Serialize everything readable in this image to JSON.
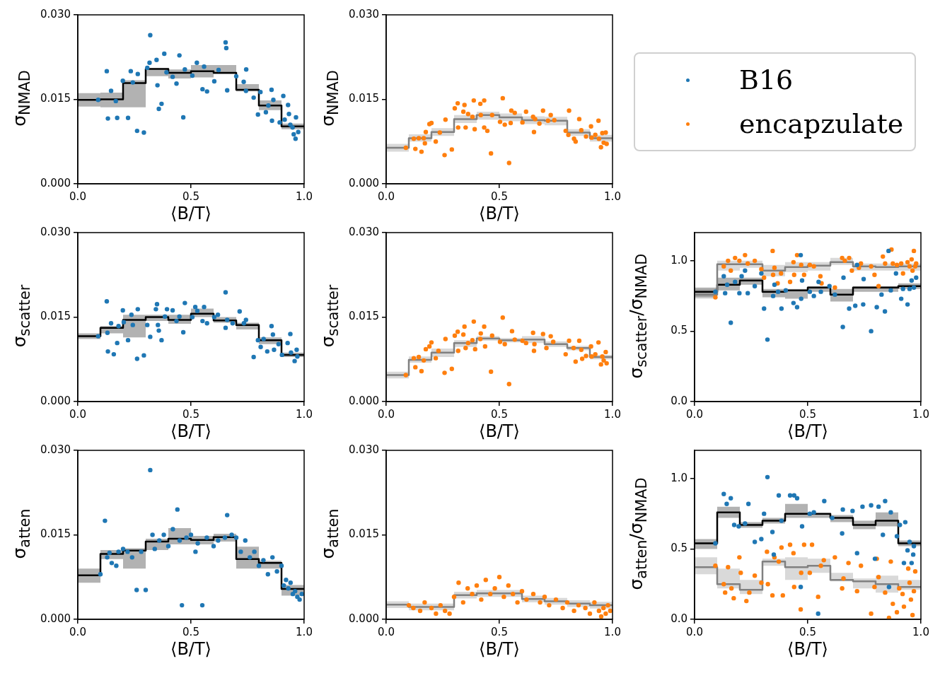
{
  "chart_data": [
    {
      "type": "scatter",
      "xlabel": "⟨B/T⟩",
      "ylabel": "σ$_{NMAD}$",
      "xlim": [
        0,
        1
      ],
      "ylim": [
        0,
        0.03
      ],
      "xticks": [
        {
          "value": 0,
          "label": "0.0"
        },
        {
          "value": 0.5,
          "label": "0.5"
        },
        {
          "value": 1,
          "label": "1.0"
        }
      ],
      "yticks": [
        {
          "value": 0,
          "label": "0.000"
        },
        {
          "value": 0.015,
          "label": "0.015"
        },
        {
          "value": 0.03,
          "label": "0.030"
        }
      ],
      "marker": "circle",
      "series": [
        {
          "type": "step",
          "marker": "none",
          "color": "#000000",
          "x": [
            0,
            0.1,
            0.2,
            0.3,
            0.4,
            0.5,
            0.6,
            0.7,
            0.8,
            0.9,
            1.0
          ],
          "values": [
            0.0149,
            0.015,
            0.0179,
            0.0204,
            0.0197,
            0.02,
            0.0197,
            0.0167,
            0.0139,
            0.0102,
            0.0102
          ],
          "lower": [
            0.0137,
            0.0136,
            0.0136,
            0.0191,
            0.0187,
            0.0189,
            0.0195,
            0.0164,
            0.0131,
            0.0097,
            0.0097
          ],
          "upper": [
            0.0161,
            0.0162,
            0.0184,
            0.0205,
            0.0203,
            0.0211,
            0.0211,
            0.0177,
            0.0148,
            0.0107,
            0.0107
          ]
        },
        {
          "type": "scatter",
          "color": "#1f77b4",
          "x": [
            0.09,
            0.128,
            0.133,
            0.147,
            0.174,
            0.168,
            0.199,
            0.222,
            0.234,
            0.243,
            0.262,
            0.265,
            0.292,
            0.307,
            0.32,
            0.317,
            0.348,
            0.352,
            0.358,
            0.37,
            0.382,
            0.392,
            0.419,
            0.436,
            0.449,
            0.466,
            0.473,
            0.506,
            0.526,
            0.551,
            0.558,
            0.571,
            0.603,
            0.622,
            0.653,
            0.656,
            0.66,
            0.7,
            0.733,
            0.744,
            0.743,
            0.777,
            0.796,
            0.807,
            0.831,
            0.842,
            0.856,
            0.864,
            0.858,
            0.892,
            0.908,
            0.914,
            0.929,
            0.933,
            0.949,
            0.964,
            0.954,
            0.962,
            0.974,
            0.939
          ],
          "values": [
            0.0149,
            0.02,
            0.0116,
            0.0165,
            0.0117,
            0.0147,
            0.0183,
            0.0117,
            0.02,
            0.018,
            0.0094,
            0.0195,
            0.0091,
            0.0206,
            0.0264,
            0.0215,
            0.022,
            0.0175,
            0.0133,
            0.0142,
            0.0231,
            0.0198,
            0.019,
            0.0178,
            0.0228,
            0.0118,
            0.0203,
            0.0192,
            0.0215,
            0.0168,
            0.0208,
            0.0164,
            0.0182,
            0.0202,
            0.0251,
            0.0241,
            0.0166,
            0.0191,
            0.0181,
            0.0203,
            0.0165,
            0.0153,
            0.0123,
            0.0163,
            0.0127,
            0.0139,
            0.0167,
            0.0149,
            0.0112,
            0.0109,
            0.0156,
            0.0114,
            0.014,
            0.0124,
            0.01,
            0.0118,
            0.0088,
            0.008,
            0.0092,
            0.0105
          ]
        }
      ]
    },
    {
      "type": "scatter",
      "xlabel": "⟨B/T⟩",
      "ylabel": "σ$_{NMAD}$",
      "xlim": [
        0,
        1
      ],
      "ylim": [
        0,
        0.03
      ],
      "xticks": [
        {
          "value": 0,
          "label": "0.0"
        },
        {
          "value": 0.5,
          "label": "0.5"
        },
        {
          "value": 1,
          "label": "1.0"
        }
      ],
      "yticks": [
        {
          "value": 0,
          "label": "0.000"
        },
        {
          "value": 0.015,
          "label": "0.015"
        },
        {
          "value": 0.03,
          "label": "0.030"
        }
      ],
      "marker": "circle",
      "series": [
        {
          "type": "step",
          "marker": "none",
          "color": "#808080",
          "x": [
            0,
            0.1,
            0.2,
            0.3,
            0.4,
            0.5,
            0.6,
            0.7,
            0.8,
            0.9,
            1.0
          ],
          "values": [
            0.0064,
            0.0081,
            0.0092,
            0.0115,
            0.0122,
            0.0118,
            0.0113,
            0.0112,
            0.0091,
            0.0081,
            0.0081
          ],
          "lower": [
            0.0057,
            0.0075,
            0.0085,
            0.0108,
            0.0114,
            0.0111,
            0.0106,
            0.0104,
            0.0085,
            0.0075,
            0.0075
          ],
          "upper": [
            0.0071,
            0.0088,
            0.0099,
            0.0122,
            0.0128,
            0.0125,
            0.012,
            0.0119,
            0.0097,
            0.0087,
            0.0087
          ]
        },
        {
          "type": "scatter",
          "color": "#ff7f0e",
          "x": [
            0.087,
            0.122,
            0.129,
            0.144,
            0.156,
            0.166,
            0.171,
            0.175,
            0.191,
            0.2,
            0.219,
            0.237,
            0.258,
            0.262,
            0.29,
            0.303,
            0.316,
            0.318,
            0.341,
            0.346,
            0.351,
            0.362,
            0.381,
            0.387,
            0.391,
            0.416,
            0.418,
            0.433,
            0.433,
            0.447,
            0.463,
            0.468,
            0.503,
            0.515,
            0.524,
            0.543,
            0.55,
            0.553,
            0.568,
            0.602,
            0.618,
            0.649,
            0.653,
            0.658,
            0.677,
            0.693,
            0.715,
            0.727,
            0.743,
            0.793,
            0.808,
            0.805,
            0.83,
            0.837,
            0.853,
            0.862,
            0.883,
            0.905,
            0.908,
            0.924,
            0.938,
            0.94,
            0.949,
            0.955,
            0.961,
            0.97,
            0.974
          ],
          "values": [
            0.0064,
            0.008,
            0.0062,
            0.0081,
            0.0057,
            0.0081,
            0.0072,
            0.0092,
            0.0106,
            0.0108,
            0.0075,
            0.0091,
            0.0051,
            0.0114,
            0.0061,
            0.0134,
            0.0143,
            0.01,
            0.0128,
            0.014,
            0.01,
            0.0124,
            0.0119,
            0.0148,
            0.0097,
            0.0142,
            0.0122,
            0.0148,
            0.01,
            0.0094,
            0.0054,
            0.0122,
            0.011,
            0.0152,
            0.0105,
            0.0037,
            0.0108,
            0.013,
            0.0126,
            0.0109,
            0.0128,
            0.0119,
            0.0092,
            0.0115,
            0.0107,
            0.013,
            0.0112,
            0.0122,
            0.0113,
            0.0094,
            0.013,
            0.0087,
            0.008,
            0.0075,
            0.0115,
            0.0095,
            0.0084,
            0.0102,
            0.0082,
            0.0087,
            0.0112,
            0.008,
            0.0065,
            0.009,
            0.0073,
            0.0091,
            0.0071
          ]
        }
      ]
    },
    {
      "type": "scatter",
      "xlabel": "⟨B/T⟩",
      "ylabel": "σ$_{scatter}$",
      "xlim": [
        0,
        1
      ],
      "ylim": [
        0,
        0.03
      ],
      "xticks": [
        {
          "value": 0,
          "label": "0.0"
        },
        {
          "value": 0.5,
          "label": "0.5"
        },
        {
          "value": 1,
          "label": "1.0"
        }
      ],
      "yticks": [
        {
          "value": 0,
          "label": "0.000"
        },
        {
          "value": 0.015,
          "label": "0.015"
        },
        {
          "value": 0.03,
          "label": "0.030"
        }
      ],
      "marker": "circle",
      "series": [
        {
          "type": "step",
          "marker": "none",
          "color": "#000000",
          "x": [
            0,
            0.1,
            0.2,
            0.3,
            0.4,
            0.5,
            0.6,
            0.7,
            0.8,
            0.9,
            1.0
          ],
          "values": [
            0.0116,
            0.0131,
            0.0145,
            0.015,
            0.0145,
            0.0156,
            0.0144,
            0.0136,
            0.0109,
            0.0083,
            0.0083
          ],
          "lower": [
            0.0111,
            0.0121,
            0.0114,
            0.0143,
            0.0138,
            0.015,
            0.014,
            0.0128,
            0.0102,
            0.0079,
            0.0079
          ],
          "upper": [
            0.0121,
            0.0134,
            0.0154,
            0.0154,
            0.0154,
            0.0165,
            0.015,
            0.014,
            0.0114,
            0.0087,
            0.0087
          ]
        },
        {
          "type": "scatter",
          "color": "#1f77b4",
          "x": [
            0.09,
            0.128,
            0.131,
            0.133,
            0.147,
            0.159,
            0.174,
            0.18,
            0.199,
            0.203,
            0.222,
            0.237,
            0.243,
            0.262,
            0.265,
            0.292,
            0.307,
            0.32,
            0.345,
            0.35,
            0.354,
            0.358,
            0.37,
            0.385,
            0.394,
            0.419,
            0.436,
            0.449,
            0.466,
            0.473,
            0.506,
            0.519,
            0.528,
            0.551,
            0.558,
            0.571,
            0.603,
            0.619,
            0.653,
            0.653,
            0.66,
            0.684,
            0.715,
            0.734,
            0.743,
            0.777,
            0.796,
            0.808,
            0.821,
            0.837,
            0.856,
            0.862,
            0.867,
            0.887,
            0.902,
            0.927,
            0.939,
            0.942,
            0.958,
            0.967,
            0.97
          ],
          "values": [
            0.0116,
            0.0178,
            0.0122,
            0.0089,
            0.0139,
            0.0084,
            0.0104,
            0.0134,
            0.0162,
            0.0141,
            0.0109,
            0.0154,
            0.0136,
            0.0076,
            0.0164,
            0.0082,
            0.0136,
            0.0115,
            0.0164,
            0.0173,
            0.0136,
            0.0126,
            0.0109,
            0.0151,
            0.0164,
            0.0162,
            0.0143,
            0.0151,
            0.0123,
            0.0175,
            0.015,
            0.0168,
            0.0161,
            0.0143,
            0.0168,
            0.0139,
            0.015,
            0.0154,
            0.0194,
            0.0131,
            0.0145,
            0.0139,
            0.016,
            0.0139,
            0.0145,
            0.0079,
            0.0109,
            0.0097,
            0.0111,
            0.0089,
            0.0134,
            0.0119,
            0.0092,
            0.0102,
            0.0083,
            0.0104,
            0.012,
            0.0087,
            0.0072,
            0.0092,
            0.008
          ]
        }
      ]
    },
    {
      "type": "scatter",
      "xlabel": "⟨B/T⟩",
      "ylabel": "σ$_{scatter}$",
      "xlim": [
        0,
        1
      ],
      "ylim": [
        0,
        0.03
      ],
      "xticks": [
        {
          "value": 0,
          "label": "0.0"
        },
        {
          "value": 0.5,
          "label": "0.5"
        },
        {
          "value": 1,
          "label": "1.0"
        }
      ],
      "yticks": [
        {
          "value": 0,
          "label": "0.000"
        },
        {
          "value": 0.015,
          "label": "0.015"
        },
        {
          "value": 0.03,
          "label": "0.030"
        }
      ],
      "marker": "circle",
      "series": [
        {
          "type": "step",
          "marker": "none",
          "color": "#808080",
          "x": [
            0,
            0.1,
            0.2,
            0.3,
            0.4,
            0.5,
            0.6,
            0.7,
            0.8,
            0.9,
            1.0
          ],
          "values": [
            0.0047,
            0.0074,
            0.0087,
            0.0104,
            0.0112,
            0.0109,
            0.011,
            0.0102,
            0.0095,
            0.0079,
            0.0079
          ],
          "lower": [
            0.0041,
            0.0069,
            0.0079,
            0.0097,
            0.0108,
            0.0105,
            0.0104,
            0.0097,
            0.0091,
            0.0075,
            0.0075
          ],
          "upper": [
            0.0053,
            0.008,
            0.0094,
            0.0109,
            0.0116,
            0.0113,
            0.0116,
            0.0107,
            0.0099,
            0.0083,
            0.0083
          ]
        },
        {
          "type": "scatter",
          "color": "#ff7f0e",
          "x": [
            0.087,
            0.122,
            0.129,
            0.144,
            0.156,
            0.166,
            0.175,
            0.191,
            0.2,
            0.219,
            0.231,
            0.258,
            0.262,
            0.29,
            0.303,
            0.316,
            0.318,
            0.341,
            0.346,
            0.351,
            0.362,
            0.381,
            0.387,
            0.393,
            0.416,
            0.418,
            0.433,
            0.437,
            0.468,
            0.463,
            0.503,
            0.515,
            0.524,
            0.543,
            0.556,
            0.568,
            0.602,
            0.618,
            0.649,
            0.653,
            0.655,
            0.693,
            0.708,
            0.727,
            0.738,
            0.793,
            0.808,
            0.828,
            0.837,
            0.853,
            0.862,
            0.866,
            0.883,
            0.905,
            0.908,
            0.924,
            0.938,
            0.949,
            0.955,
            0.961,
            0.97,
            0.974
          ],
          "values": [
            0.0047,
            0.0077,
            0.0061,
            0.0079,
            0.0054,
            0.0073,
            0.0093,
            0.0098,
            0.0105,
            0.0077,
            0.009,
            0.0051,
            0.0111,
            0.0058,
            0.0117,
            0.0124,
            0.009,
            0.0119,
            0.0133,
            0.0095,
            0.0104,
            0.0109,
            0.0142,
            0.0093,
            0.0111,
            0.0121,
            0.0133,
            0.0098,
            0.0117,
            0.0053,
            0.0106,
            0.0149,
            0.0102,
            0.0031,
            0.0125,
            0.011,
            0.0108,
            0.0104,
            0.0122,
            0.009,
            0.0102,
            0.012,
            0.0095,
            0.0116,
            0.0106,
            0.0084,
            0.0108,
            0.0095,
            0.0071,
            0.0108,
            0.0092,
            0.0076,
            0.0081,
            0.0098,
            0.008,
            0.0084,
            0.0105,
            0.0066,
            0.008,
            0.0073,
            0.0088,
            0.0068
          ]
        }
      ]
    },
    {
      "type": "scatter",
      "xlabel": "⟨B/T⟩",
      "ylabel": "σ$_{scatter}$/σ$_{NMAD}$",
      "xlim": [
        0,
        1
      ],
      "ylim": [
        0,
        1.2
      ],
      "xticks": [
        {
          "value": 0,
          "label": "0.0"
        },
        {
          "value": 0.5,
          "label": "0.5"
        },
        {
          "value": 1,
          "label": "1.0"
        }
      ],
      "yticks": [
        {
          "value": 0,
          "label": "0.0"
        },
        {
          "value": 0.5,
          "label": "0.5"
        },
        {
          "value": 1,
          "label": "1.0"
        }
      ],
      "marker": "circle",
      "legend": "top",
      "series": [
        {
          "type": "step",
          "marker": "none",
          "color": "#808080",
          "x": [
            0,
            0.1,
            0.2,
            0.3,
            0.4,
            0.5,
            0.6,
            0.7,
            0.8,
            0.9,
            1.0
          ],
          "values": [
            0.76,
            0.975,
            0.975,
            0.93,
            0.955,
            0.965,
            0.99,
            0.96,
            0.955,
            0.96,
            0.96
          ],
          "lower": [
            0.73,
            0.93,
            0.95,
            0.89,
            0.92,
            0.93,
            0.97,
            0.93,
            0.93,
            0.93,
            0.93
          ],
          "upper": [
            0.8,
            1.0,
            1.0,
            0.97,
            0.99,
            0.99,
            1.02,
            0.98,
            0.98,
            0.98,
            0.98
          ]
        },
        {
          "type": "step",
          "marker": "none",
          "color": "#000000",
          "x": [
            0,
            0.1,
            0.2,
            0.3,
            0.4,
            0.5,
            0.6,
            0.7,
            0.8,
            0.9,
            1.0
          ],
          "values": [
            0.78,
            0.83,
            0.86,
            0.78,
            0.79,
            0.81,
            0.76,
            0.81,
            0.81,
            0.82,
            0.82
          ],
          "lower": [
            0.74,
            0.79,
            0.83,
            0.74,
            0.73,
            0.78,
            0.71,
            0.78,
            0.78,
            0.8,
            0.8
          ],
          "upper": [
            0.81,
            0.88,
            0.88,
            0.8,
            0.8,
            0.82,
            0.8,
            0.82,
            0.82,
            0.84,
            0.84
          ]
        },
        {
          "type": "scatter",
          "name": "B16",
          "color": "#1f77b4",
          "x": [
            0.092,
            0.129,
            0.135,
            0.144,
            0.16,
            0.179,
            0.198,
            0.208,
            0.223,
            0.235,
            0.266,
            0.295,
            0.307,
            0.322,
            0.347,
            0.353,
            0.369,
            0.384,
            0.403,
            0.437,
            0.453,
            0.469,
            0.471,
            0.475,
            0.509,
            0.527,
            0.548,
            0.558,
            0.596,
            0.62,
            0.655,
            0.658,
            0.683,
            0.71,
            0.718,
            0.745,
            0.747,
            0.78,
            0.805,
            0.826,
            0.841,
            0.857,
            0.867,
            0.89,
            0.913,
            0.921,
            0.941,
            0.95,
            0.959,
            0.969,
            0.979
          ],
          "values": [
            0.78,
            0.89,
            0.77,
            0.83,
            0.56,
            0.85,
            0.77,
            0.89,
            0.93,
            0.77,
            0.82,
            0.91,
            0.66,
            0.44,
            0.75,
            0.83,
            0.78,
            0.66,
            0.79,
            0.7,
            0.67,
            1.04,
            0.73,
            0.86,
            0.78,
            0.75,
            0.85,
            0.78,
            0.82,
            0.76,
            0.53,
            0.88,
            0.66,
            0.68,
            0.97,
            0.69,
            0.87,
            0.5,
            0.67,
            0.76,
            0.64,
            1.07,
            0.79,
            0.91,
            0.73,
            0.8,
            0.69,
            0.8,
            0.86,
            0.81,
            0.88
          ]
        },
        {
          "type": "scatter",
          "name": "encapzulate",
          "color": "#ff7f0e",
          "x": [
            0.092,
            0.129,
            0.148,
            0.16,
            0.179,
            0.198,
            0.223,
            0.235,
            0.266,
            0.295,
            0.307,
            0.345,
            0.347,
            0.353,
            0.367,
            0.382,
            0.422,
            0.437,
            0.44,
            0.453,
            0.471,
            0.484,
            0.509,
            0.527,
            0.556,
            0.561,
            0.62,
            0.652,
            0.664,
            0.683,
            0.695,
            0.726,
            0.735,
            0.78,
            0.795,
            0.813,
            0.832,
            0.842,
            0.87,
            0.876,
            0.894,
            0.913,
            0.921,
            0.941,
            0.95,
            0.959,
            0.963,
            0.969,
            0.975,
            0.979
          ],
          "values": [
            0.74,
            0.96,
            1.0,
            0.93,
            1.02,
            1.0,
            1.04,
            0.98,
            1.0,
            0.94,
            0.88,
            1.07,
            0.9,
            0.95,
            0.84,
            0.91,
            0.85,
            0.99,
            0.9,
            1.04,
            0.97,
            0.9,
            0.97,
            0.96,
            0.89,
            0.84,
            0.81,
            1.02,
            1.0,
            1.02,
            0.93,
            0.95,
            0.98,
            0.96,
            0.9,
            0.82,
            1.03,
            0.98,
            1.08,
            0.98,
            0.97,
            0.98,
            0.91,
            0.99,
            0.96,
            1.01,
            0.93,
            1.07,
            0.96,
            0.98
          ]
        }
      ]
    },
    {
      "type": "scatter",
      "xlabel": "⟨B/T⟩",
      "ylabel": "σ$_{atten}$",
      "xlim": [
        0,
        1
      ],
      "ylim": [
        0,
        0.03
      ],
      "xticks": [
        {
          "value": 0,
          "label": "0.0"
        },
        {
          "value": 0.5,
          "label": "0.5"
        },
        {
          "value": 1,
          "label": "1.0"
        }
      ],
      "yticks": [
        {
          "value": 0,
          "label": "0.000"
        },
        {
          "value": 0.015,
          "label": "0.015"
        },
        {
          "value": 0.03,
          "label": "0.030"
        }
      ],
      "marker": "circle",
      "series": [
        {
          "type": "step",
          "marker": "none",
          "color": "#000000",
          "x": [
            0,
            0.1,
            0.2,
            0.3,
            0.4,
            0.5,
            0.6,
            0.7,
            0.8,
            0.9,
            1.0
          ],
          "values": [
            0.0078,
            0.0116,
            0.0122,
            0.0138,
            0.0143,
            0.0141,
            0.0146,
            0.0107,
            0.01,
            0.0054,
            0.0054
          ],
          "lower": [
            0.0065,
            0.0107,
            0.009,
            0.0123,
            0.0133,
            0.0133,
            0.0138,
            0.009,
            0.009,
            0.0042,
            0.0042
          ],
          "upper": [
            0.009,
            0.0123,
            0.0126,
            0.0143,
            0.0162,
            0.0148,
            0.0152,
            0.0129,
            0.0104,
            0.0061,
            0.0061
          ]
        },
        {
          "type": "scatter",
          "color": "#1f77b4",
          "x": [
            0.1,
            0.12,
            0.13,
            0.14,
            0.15,
            0.17,
            0.18,
            0.2,
            0.22,
            0.24,
            0.26,
            0.28,
            0.3,
            0.32,
            0.33,
            0.34,
            0.36,
            0.38,
            0.4,
            0.42,
            0.44,
            0.45,
            0.46,
            0.48,
            0.5,
            0.52,
            0.53,
            0.55,
            0.57,
            0.6,
            0.62,
            0.65,
            0.66,
            0.68,
            0.7,
            0.72,
            0.74,
            0.76,
            0.78,
            0.8,
            0.82,
            0.84,
            0.86,
            0.88,
            0.9,
            0.91,
            0.92,
            0.93,
            0.94,
            0.95,
            0.96,
            0.97,
            0.98,
            0.99
          ],
          "values": [
            0.008,
            0.0175,
            0.011,
            0.0118,
            0.01,
            0.0095,
            0.012,
            0.0125,
            0.012,
            0.011,
            0.0052,
            0.012,
            0.0052,
            0.0265,
            0.015,
            0.0125,
            0.014,
            0.015,
            0.013,
            0.016,
            0.0195,
            0.014,
            0.0025,
            0.0145,
            0.015,
            0.012,
            0.0135,
            0.0025,
            0.0145,
            0.013,
            0.014,
            0.0145,
            0.0185,
            0.015,
            0.0145,
            0.012,
            0.014,
            0.011,
            0.012,
            0.0095,
            0.0105,
            0.008,
            0.011,
            0.0085,
            0.0095,
            0.006,
            0.007,
            0.0055,
            0.0065,
            0.0045,
            0.005,
            0.004,
            0.0035,
            0.0045
          ]
        }
      ]
    },
    {
      "type": "scatter",
      "xlabel": "⟨B/T⟩",
      "ylabel": "σ$_{atten}$",
      "xlim": [
        0,
        1
      ],
      "ylim": [
        0,
        0.03
      ],
      "xticks": [
        {
          "value": 0,
          "label": "0.0"
        },
        {
          "value": 0.5,
          "label": "0.5"
        },
        {
          "value": 1,
          "label": "1.0"
        }
      ],
      "yticks": [
        {
          "value": 0,
          "label": "0.000"
        },
        {
          "value": 0.015,
          "label": "0.015"
        },
        {
          "value": 0.03,
          "label": "0.030"
        }
      ],
      "marker": "circle",
      "series": [
        {
          "type": "step",
          "marker": "none",
          "color": "#808080",
          "x": [
            0,
            0.1,
            0.2,
            0.3,
            0.4,
            0.5,
            0.6,
            0.7,
            0.8,
            0.9,
            1.0
          ],
          "values": [
            0.0026,
            0.0022,
            0.0022,
            0.0043,
            0.0046,
            0.0046,
            0.0036,
            0.0032,
            0.0028,
            0.0025,
            0.0025
          ],
          "lower": [
            0.002,
            0.0016,
            0.0016,
            0.0037,
            0.004,
            0.004,
            0.003,
            0.0026,
            0.0022,
            0.0019,
            0.0019
          ],
          "upper": [
            0.0032,
            0.0028,
            0.0028,
            0.0049,
            0.0052,
            0.0052,
            0.0042,
            0.0038,
            0.0034,
            0.0031,
            0.0031
          ]
        },
        {
          "type": "scatter",
          "color": "#ff7f0e",
          "x": [
            0.1,
            0.12,
            0.15,
            0.17,
            0.2,
            0.22,
            0.24,
            0.26,
            0.28,
            0.3,
            0.32,
            0.34,
            0.36,
            0.38,
            0.4,
            0.42,
            0.44,
            0.46,
            0.48,
            0.5,
            0.52,
            0.54,
            0.56,
            0.58,
            0.6,
            0.62,
            0.65,
            0.68,
            0.7,
            0.72,
            0.75,
            0.78,
            0.8,
            0.83,
            0.85,
            0.88,
            0.9,
            0.92,
            0.94,
            0.95,
            0.96,
            0.97,
            0.98,
            0.99
          ],
          "values": [
            0.0025,
            0.002,
            0.0015,
            0.003,
            0.002,
            0.001,
            0.0025,
            0.0015,
            0.001,
            0.004,
            0.0065,
            0.003,
            0.0055,
            0.0045,
            0.006,
            0.0035,
            0.007,
            0.0045,
            0.0055,
            0.0075,
            0.004,
            0.006,
            0.0045,
            0.003,
            0.005,
            0.0035,
            0.0045,
            0.003,
            0.004,
            0.0025,
            0.0035,
            0.002,
            0.003,
            0.0015,
            0.0025,
            0.002,
            0.001,
            0.003,
            0.0015,
            0.0005,
            0.002,
            0.001,
            0.0025,
            0.0015
          ]
        }
      ]
    },
    {
      "type": "scatter",
      "xlabel": "⟨B/T⟩",
      "ylabel": "σ$_{atten}$/σ$_{NMAD}$",
      "xlim": [
        0,
        1
      ],
      "ylim": [
        0,
        1.2
      ],
      "xticks": [
        {
          "value": 0,
          "label": "0.0"
        },
        {
          "value": 0.5,
          "label": "0.5"
        },
        {
          "value": 1,
          "label": "1.0"
        }
      ],
      "yticks": [
        {
          "value": 0,
          "label": "0.0"
        },
        {
          "value": 0.5,
          "label": "0.5"
        },
        {
          "value": 1,
          "label": "1.0"
        }
      ],
      "marker": "circle",
      "series": [
        {
          "type": "step",
          "marker": "none",
          "color": "#808080",
          "x": [
            0,
            0.1,
            0.2,
            0.3,
            0.4,
            0.5,
            0.6,
            0.7,
            0.8,
            0.9,
            1.0
          ],
          "values": [
            0.37,
            0.25,
            0.21,
            0.41,
            0.37,
            0.38,
            0.28,
            0.27,
            0.25,
            0.23,
            0.23
          ],
          "lower": [
            0.32,
            0.22,
            0.18,
            0.38,
            0.28,
            0.33,
            0.27,
            0.22,
            0.19,
            0.21,
            0.21
          ],
          "upper": [
            0.44,
            0.36,
            0.28,
            0.43,
            0.44,
            0.43,
            0.33,
            0.29,
            0.31,
            0.28,
            0.28
          ]
        },
        {
          "type": "step",
          "marker": "none",
          "color": "#000000",
          "x": [
            0,
            0.1,
            0.2,
            0.3,
            0.4,
            0.5,
            0.6,
            0.7,
            0.8,
            0.9,
            1.0
          ],
          "values": [
            0.54,
            0.76,
            0.67,
            0.7,
            0.75,
            0.75,
            0.72,
            0.67,
            0.7,
            0.54,
            0.54
          ],
          "lower": [
            0.5,
            0.72,
            0.65,
            0.68,
            0.72,
            0.72,
            0.69,
            0.64,
            0.66,
            0.52,
            0.52
          ],
          "upper": [
            0.57,
            0.8,
            0.69,
            0.72,
            0.82,
            0.75,
            0.74,
            0.7,
            0.76,
            0.56,
            0.56
          ]
        },
        {
          "type": "scatter",
          "color": "#1f77b4",
          "x": [
            0.092,
            0.129,
            0.142,
            0.16,
            0.175,
            0.195,
            0.223,
            0.238,
            0.266,
            0.295,
            0.307,
            0.322,
            0.344,
            0.35,
            0.372,
            0.384,
            0.422,
            0.44,
            0.453,
            0.469,
            0.475,
            0.509,
            0.527,
            0.546,
            0.573,
            0.608,
            0.652,
            0.655,
            0.698,
            0.718,
            0.742,
            0.78,
            0.797,
            0.813,
            0.832,
            0.842,
            0.859,
            0.867,
            0.894,
            0.907,
            0.925,
            0.931,
            0.941,
            0.95,
            0.959,
            0.966,
            0.969
          ],
          "values": [
            0.54,
            0.89,
            0.82,
            0.86,
            0.67,
            0.66,
            0.68,
            0.82,
            0.55,
            0.57,
            0.75,
            1.01,
            0.62,
            0.46,
            0.88,
            0.7,
            0.88,
            0.88,
            0.86,
            0.23,
            0.66,
            0.75,
            0.76,
            0.04,
            0.84,
            0.72,
            0.61,
            0.78,
            0.77,
            0.47,
            0.8,
            0.81,
            0.43,
            0.8,
            0.6,
            0.84,
            0.23,
            0.76,
            0.59,
            0.67,
            0.4,
            0.69,
            0.49,
            0.55,
            0.4,
            0.46,
            0.52
          ]
        },
        {
          "type": "scatter",
          "color": "#ff7f0e",
          "x": [
            0.092,
            0.129,
            0.135,
            0.148,
            0.163,
            0.173,
            0.198,
            0.204,
            0.229,
            0.242,
            0.266,
            0.295,
            0.32,
            0.324,
            0.344,
            0.353,
            0.372,
            0.384,
            0.39,
            0.422,
            0.437,
            0.44,
            0.469,
            0.471,
            0.484,
            0.509,
            0.519,
            0.546,
            0.558,
            0.571,
            0.62,
            0.652,
            0.658,
            0.68,
            0.718,
            0.735,
            0.78,
            0.795,
            0.805,
            0.813,
            0.842,
            0.859,
            0.867,
            0.876,
            0.894,
            0.904,
            0.919,
            0.925,
            0.944,
            0.95,
            0.956,
            0.963,
            0.969,
            0.975
          ],
          "values": [
            0.38,
            0.25,
            0.19,
            0.37,
            0.22,
            0.15,
            0.44,
            0.33,
            0.13,
            0.19,
            0.31,
            0.26,
            0.48,
            0.25,
            0.17,
            0.44,
            0.41,
            0.51,
            0.17,
            0.53,
            0.47,
            0.23,
            0.07,
            0.33,
            0.53,
            0.33,
            0.53,
            0.16,
            0.38,
            0.42,
            0.44,
            0.22,
            0.29,
            0.4,
            0.2,
            0.38,
            0.04,
            0.23,
            0.43,
            0.3,
            0.19,
            0.01,
            0.41,
            0.11,
            0.05,
            0.22,
            0.18,
            0.09,
            0.36,
            0.26,
            0.14,
            0.03,
            0.2,
            0.34
          ]
        }
      ]
    }
  ]
}
